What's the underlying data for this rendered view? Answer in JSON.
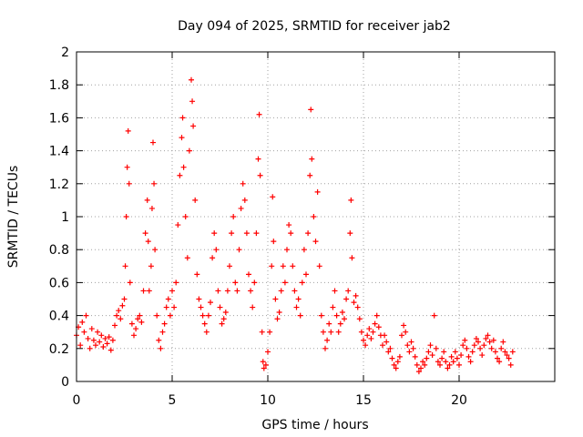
{
  "chart_data": {
    "type": "scatter",
    "title": "Day 094 of 2025, SRMTID for receiver jab2",
    "xlabel": "GPS time / hours",
    "ylabel": "SRMTID / TECUs",
    "xlim": [
      0,
      25
    ],
    "ylim": [
      0,
      2
    ],
    "x_ticks": [
      0,
      5,
      10,
      15,
      20
    ],
    "x_tick_labels": [
      "0",
      "5",
      "10",
      "15",
      "20"
    ],
    "y_ticks": [
      0,
      0.2,
      0.4,
      0.6,
      0.8,
      1,
      1.2,
      1.4,
      1.6,
      1.8,
      2
    ],
    "y_tick_labels": [
      "0",
      "0.2",
      "0.4",
      "0.6",
      "0.8",
      "1",
      "1.2",
      "1.4",
      "1.6",
      "1.8",
      "2"
    ],
    "grid": true,
    "marker": "+",
    "series": [
      {
        "name": "SRMTID",
        "color": "#ff0000",
        "points": [
          [
            0.0,
            0.28
          ],
          [
            0.1,
            0.33
          ],
          [
            0.2,
            0.22
          ],
          [
            0.3,
            0.36
          ],
          [
            0.4,
            0.3
          ],
          [
            0.5,
            0.4
          ],
          [
            0.6,
            0.26
          ],
          [
            0.7,
            0.2
          ],
          [
            0.8,
            0.32
          ],
          [
            0.9,
            0.25
          ],
          [
            1.0,
            0.22
          ],
          [
            1.1,
            0.3
          ],
          [
            1.2,
            0.24
          ],
          [
            1.3,
            0.28
          ],
          [
            1.4,
            0.21
          ],
          [
            1.5,
            0.26
          ],
          [
            1.6,
            0.23
          ],
          [
            1.7,
            0.27
          ],
          [
            1.8,
            0.19
          ],
          [
            1.9,
            0.25
          ],
          [
            2.0,
            0.34
          ],
          [
            2.1,
            0.4
          ],
          [
            2.2,
            0.43
          ],
          [
            2.3,
            0.38
          ],
          [
            2.4,
            0.46
          ],
          [
            2.5,
            0.5
          ],
          [
            2.55,
            0.7
          ],
          [
            2.6,
            1.0
          ],
          [
            2.65,
            1.3
          ],
          [
            2.7,
            1.52
          ],
          [
            2.75,
            1.2
          ],
          [
            2.8,
            0.6
          ],
          [
            2.9,
            0.35
          ],
          [
            3.0,
            0.28
          ],
          [
            3.1,
            0.32
          ],
          [
            3.2,
            0.38
          ],
          [
            3.3,
            0.4
          ],
          [
            3.4,
            0.36
          ],
          [
            3.5,
            0.55
          ],
          [
            3.6,
            0.9
          ],
          [
            3.7,
            1.1
          ],
          [
            3.75,
            0.85
          ],
          [
            3.8,
            0.55
          ],
          [
            3.9,
            0.7
          ],
          [
            3.95,
            1.05
          ],
          [
            4.0,
            1.45
          ],
          [
            4.05,
            1.2
          ],
          [
            4.1,
            0.8
          ],
          [
            4.2,
            0.4
          ],
          [
            4.3,
            0.25
          ],
          [
            4.4,
            0.2
          ],
          [
            4.5,
            0.3
          ],
          [
            4.6,
            0.35
          ],
          [
            4.7,
            0.45
          ],
          [
            4.8,
            0.5
          ],
          [
            4.9,
            0.4
          ],
          [
            5.0,
            0.55
          ],
          [
            5.1,
            0.45
          ],
          [
            5.2,
            0.6
          ],
          [
            5.3,
            0.95
          ],
          [
            5.4,
            1.25
          ],
          [
            5.5,
            1.48
          ],
          [
            5.55,
            1.6
          ],
          [
            5.6,
            1.3
          ],
          [
            5.7,
            1.0
          ],
          [
            5.8,
            0.75
          ],
          [
            5.9,
            1.4
          ],
          [
            6.0,
            1.83
          ],
          [
            6.05,
            1.7
          ],
          [
            6.1,
            1.55
          ],
          [
            6.2,
            1.1
          ],
          [
            6.3,
            0.65
          ],
          [
            6.4,
            0.5
          ],
          [
            6.5,
            0.45
          ],
          [
            6.6,
            0.4
          ],
          [
            6.7,
            0.35
          ],
          [
            6.8,
            0.3
          ],
          [
            6.9,
            0.4
          ],
          [
            7.0,
            0.48
          ],
          [
            7.1,
            0.75
          ],
          [
            7.2,
            0.9
          ],
          [
            7.3,
            0.8
          ],
          [
            7.4,
            0.55
          ],
          [
            7.5,
            0.45
          ],
          [
            7.6,
            0.35
          ],
          [
            7.7,
            0.38
          ],
          [
            7.8,
            0.42
          ],
          [
            7.9,
            0.55
          ],
          [
            8.0,
            0.7
          ],
          [
            8.1,
            0.9
          ],
          [
            8.2,
            1.0
          ],
          [
            8.3,
            0.6
          ],
          [
            8.4,
            0.55
          ],
          [
            8.5,
            0.8
          ],
          [
            8.6,
            1.05
          ],
          [
            8.7,
            1.2
          ],
          [
            8.8,
            1.1
          ],
          [
            8.9,
            0.9
          ],
          [
            9.0,
            0.65
          ],
          [
            9.1,
            0.55
          ],
          [
            9.2,
            0.45
          ],
          [
            9.3,
            0.6
          ],
          [
            9.4,
            0.9
          ],
          [
            9.5,
            1.35
          ],
          [
            9.55,
            1.62
          ],
          [
            9.6,
            1.25
          ],
          [
            9.7,
            0.3
          ],
          [
            9.75,
            0.12
          ],
          [
            9.8,
            0.08
          ],
          [
            9.9,
            0.1
          ],
          [
            10.0,
            0.18
          ],
          [
            10.1,
            0.3
          ],
          [
            10.2,
            0.7
          ],
          [
            10.25,
            1.12
          ],
          [
            10.3,
            0.85
          ],
          [
            10.4,
            0.5
          ],
          [
            10.5,
            0.38
          ],
          [
            10.6,
            0.42
          ],
          [
            10.7,
            0.55
          ],
          [
            10.8,
            0.7
          ],
          [
            10.9,
            0.6
          ],
          [
            11.0,
            0.8
          ],
          [
            11.1,
            0.95
          ],
          [
            11.2,
            0.9
          ],
          [
            11.3,
            0.7
          ],
          [
            11.4,
            0.55
          ],
          [
            11.5,
            0.45
          ],
          [
            11.6,
            0.5
          ],
          [
            11.7,
            0.4
          ],
          [
            11.8,
            0.6
          ],
          [
            11.9,
            0.8
          ],
          [
            12.0,
            0.65
          ],
          [
            12.1,
            0.9
          ],
          [
            12.2,
            1.25
          ],
          [
            12.25,
            1.65
          ],
          [
            12.3,
            1.35
          ],
          [
            12.4,
            1.0
          ],
          [
            12.5,
            0.85
          ],
          [
            12.6,
            1.15
          ],
          [
            12.7,
            0.7
          ],
          [
            12.8,
            0.4
          ],
          [
            12.9,
            0.3
          ],
          [
            13.0,
            0.2
          ],
          [
            13.1,
            0.25
          ],
          [
            13.2,
            0.35
          ],
          [
            13.3,
            0.3
          ],
          [
            13.4,
            0.45
          ],
          [
            13.5,
            0.55
          ],
          [
            13.6,
            0.4
          ],
          [
            13.7,
            0.3
          ],
          [
            13.8,
            0.35
          ],
          [
            13.9,
            0.42
          ],
          [
            14.0,
            0.38
          ],
          [
            14.1,
            0.5
          ],
          [
            14.2,
            0.55
          ],
          [
            14.3,
            0.9
          ],
          [
            14.35,
            1.1
          ],
          [
            14.4,
            0.75
          ],
          [
            14.5,
            0.48
          ],
          [
            14.6,
            0.52
          ],
          [
            14.7,
            0.45
          ],
          [
            14.8,
            0.38
          ],
          [
            14.9,
            0.3
          ],
          [
            15.0,
            0.25
          ],
          [
            15.1,
            0.22
          ],
          [
            15.2,
            0.28
          ],
          [
            15.3,
            0.32
          ],
          [
            15.4,
            0.26
          ],
          [
            15.5,
            0.3
          ],
          [
            15.6,
            0.35
          ],
          [
            15.7,
            0.4
          ],
          [
            15.8,
            0.33
          ],
          [
            15.9,
            0.28
          ],
          [
            16.0,
            0.22
          ],
          [
            16.1,
            0.28
          ],
          [
            16.2,
            0.24
          ],
          [
            16.3,
            0.18
          ],
          [
            16.4,
            0.2
          ],
          [
            16.5,
            0.14
          ],
          [
            16.6,
            0.1
          ],
          [
            16.7,
            0.08
          ],
          [
            16.8,
            0.12
          ],
          [
            16.9,
            0.15
          ],
          [
            17.0,
            0.28
          ],
          [
            17.1,
            0.34
          ],
          [
            17.2,
            0.3
          ],
          [
            17.3,
            0.22
          ],
          [
            17.4,
            0.18
          ],
          [
            17.5,
            0.24
          ],
          [
            17.6,
            0.2
          ],
          [
            17.7,
            0.15
          ],
          [
            17.8,
            0.1
          ],
          [
            17.9,
            0.06
          ],
          [
            18.0,
            0.08
          ],
          [
            18.1,
            0.12
          ],
          [
            18.2,
            0.1
          ],
          [
            18.3,
            0.14
          ],
          [
            18.4,
            0.18
          ],
          [
            18.5,
            0.22
          ],
          [
            18.6,
            0.16
          ],
          [
            18.7,
            0.4
          ],
          [
            18.8,
            0.2
          ],
          [
            18.9,
            0.12
          ],
          [
            19.0,
            0.1
          ],
          [
            19.1,
            0.14
          ],
          [
            19.2,
            0.18
          ],
          [
            19.3,
            0.12
          ],
          [
            19.4,
            0.08
          ],
          [
            19.5,
            0.1
          ],
          [
            19.6,
            0.15
          ],
          [
            19.7,
            0.12
          ],
          [
            19.8,
            0.18
          ],
          [
            19.9,
            0.14
          ],
          [
            20.0,
            0.1
          ],
          [
            20.1,
            0.16
          ],
          [
            20.2,
            0.22
          ],
          [
            20.3,
            0.25
          ],
          [
            20.4,
            0.2
          ],
          [
            20.5,
            0.15
          ],
          [
            20.6,
            0.12
          ],
          [
            20.7,
            0.18
          ],
          [
            20.8,
            0.22
          ],
          [
            20.9,
            0.26
          ],
          [
            21.0,
            0.24
          ],
          [
            21.1,
            0.2
          ],
          [
            21.2,
            0.16
          ],
          [
            21.3,
            0.22
          ],
          [
            21.4,
            0.26
          ],
          [
            21.5,
            0.28
          ],
          [
            21.6,
            0.24
          ],
          [
            21.7,
            0.2
          ],
          [
            21.8,
            0.25
          ],
          [
            21.9,
            0.18
          ],
          [
            22.0,
            0.14
          ],
          [
            22.1,
            0.12
          ],
          [
            22.2,
            0.2
          ],
          [
            22.3,
            0.24
          ],
          [
            22.4,
            0.18
          ],
          [
            22.5,
            0.16
          ],
          [
            22.6,
            0.14
          ],
          [
            22.7,
            0.1
          ],
          [
            22.8,
            0.18
          ]
        ]
      }
    ]
  }
}
